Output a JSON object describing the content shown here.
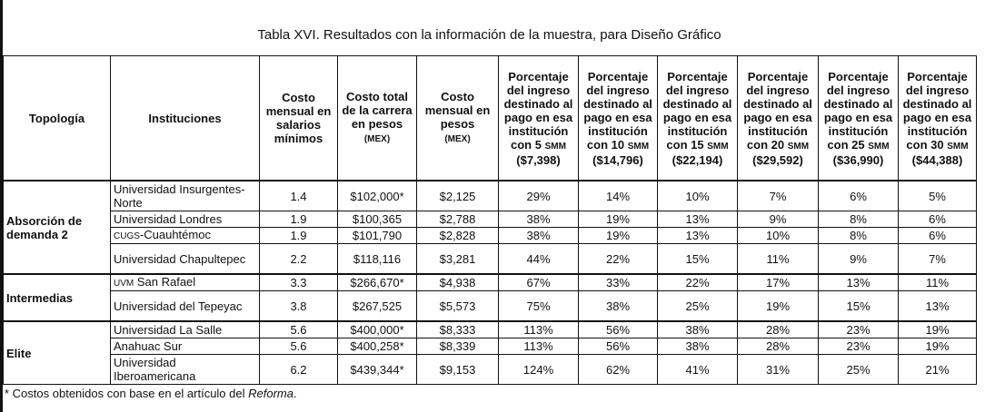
{
  "title": "Tabla XVI. Resultados con la información de la muestra, para Diseño Gráfico",
  "headers": {
    "topologia": "Topología",
    "instituciones": "Instituciones",
    "smm": "Costo mensual en salarios mínimos",
    "total": "Costo total de la carrera en pesos",
    "total_unit": "(MEX)",
    "mensual": "Costo mensual en pesos",
    "mensual_unit": "(MEX)",
    "pct_prefix": "Porcentaje del ingreso destinado al pago en esa institución con",
    "pct_cols": [
      {
        "n": "5",
        "unit": "SMM",
        "amount": "($7,398)"
      },
      {
        "n": "10",
        "unit": "SMM",
        "amount": "($14,796)"
      },
      {
        "n": "15",
        "unit": "SMM",
        "amount": "($22,194)"
      },
      {
        "n": "20",
        "unit": "SMM",
        "amount": "($29,592)"
      },
      {
        "n": "25",
        "unit": "SMM",
        "amount": "($36,990)"
      },
      {
        "n": "30",
        "unit": "SMM",
        "amount": "($44,388)"
      }
    ]
  },
  "groups": [
    {
      "name": "Absorción de demanda 2",
      "rows": [
        {
          "inst": "Universidad Insurgentes-Norte",
          "smm": "1.4",
          "total": "$102,000*",
          "mensual": "$2,125",
          "pct": [
            "29%",
            "14%",
            "10%",
            "7%",
            "6%",
            "5%"
          ]
        },
        {
          "inst": "Universidad Londres",
          "smm": "1.9",
          "total": "$100,365",
          "mensual": "$2,788",
          "pct": [
            "38%",
            "19%",
            "13%",
            "9%",
            "8%",
            "6%"
          ]
        },
        {
          "inst_sc": "CUGS",
          "inst": "-Cuauhtémoc",
          "smm": "1.9",
          "total": "$101,790",
          "mensual": "$2,828",
          "pct": [
            "38%",
            "19%",
            "13%",
            "10%",
            "8%",
            "6%"
          ]
        },
        {
          "inst": "Universidad Chapultepec",
          "smm": "2.2",
          "total": "$118,116",
          "mensual": "$3,281",
          "pct": [
            "44%",
            "22%",
            "15%",
            "11%",
            "9%",
            "7%"
          ]
        }
      ]
    },
    {
      "name": "Intermedias",
      "rows": [
        {
          "inst_sc": "UVM",
          "inst": " San Rafael",
          "smm": "3.3",
          "total": "$266,670*",
          "mensual": "$4,938",
          "pct": [
            "67%",
            "33%",
            "22%",
            "17%",
            "13%",
            "11%"
          ]
        },
        {
          "inst": "Universidad del Tepeyac",
          "smm": "3.8",
          "total": "$267,525",
          "mensual": "$5,573",
          "pct": [
            "75%",
            "38%",
            "25%",
            "19%",
            "15%",
            "13%"
          ]
        }
      ]
    },
    {
      "name": "Elite",
      "rows": [
        {
          "inst": "Universidad La Salle",
          "smm": "5.6",
          "total": "$400,000*",
          "mensual": "$8,333",
          "pct": [
            "113%",
            "56%",
            "38%",
            "28%",
            "23%",
            "19%"
          ]
        },
        {
          "inst": "Anahuac Sur",
          "smm": "5.6",
          "total": "$400,258*",
          "mensual": "$8,339",
          "pct": [
            "113%",
            "56%",
            "38%",
            "28%",
            "23%",
            "19%"
          ]
        },
        {
          "inst": "Universidad Iberoamericana",
          "smm": "6.2",
          "total": "$439,344*",
          "mensual": "$9,153",
          "pct": [
            "124%",
            "62%",
            "41%",
            "31%",
            "25%",
            "21%"
          ]
        }
      ]
    }
  ],
  "footnote": {
    "text": "* Costos obtenidos con base en el artículo del ",
    "source": "Reforma",
    "end": "."
  }
}
